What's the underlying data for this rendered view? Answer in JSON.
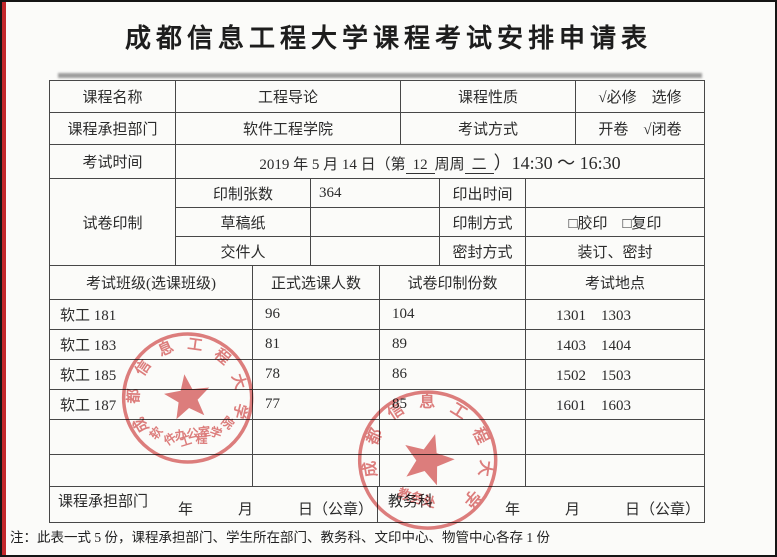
{
  "page": {
    "title": "成都信息工程大学课程考试安排申请表",
    "note": "注：此表一式 5 份，课程承担部门、学生所在部门、教务科、文印中心、物管中心各存 1 份"
  },
  "colors": {
    "stamp": "#d95f5f",
    "edge_red": "#c3282c"
  },
  "info": {
    "course_name_label": "课程名称",
    "course_name": "工程导论",
    "course_type_label": "课程性质",
    "course_type": "√必修　选修",
    "dept_label": "课程承担部门",
    "dept": "软件工程学院",
    "exam_mode_label": "考试方式",
    "exam_mode": "开卷　√闭卷",
    "exam_time_label": "考试时间",
    "exam_time": {
      "prefix": "2019 年 5 月 14 日（第",
      "week": "12",
      "mid": "周周",
      "day": "二",
      "suffix": "）14:30 ～ 16:30"
    }
  },
  "printing": {
    "label": "试卷印制",
    "rows": [
      {
        "k1": "印制张数",
        "v1": "364",
        "k2": "印出时间",
        "v2": ""
      },
      {
        "k1": "草稿纸",
        "v1": "",
        "k2": "印制方式",
        "v2": "□胶印　□复印"
      },
      {
        "k1": "交件人",
        "v1": "",
        "k2": "密封方式",
        "v2": "装订、密封"
      }
    ]
  },
  "classes": {
    "headers": [
      "考试班级(选课班级)",
      "正式选课人数",
      "试卷印制份数",
      "考试地点"
    ],
    "rows": [
      [
        "软工 181",
        "96",
        "104",
        "1301　1303"
      ],
      [
        "软工 183",
        "81",
        "89",
        "1403　1404"
      ],
      [
        "软工 185",
        "78",
        "86",
        "1502　1503"
      ],
      [
        "软工 187",
        "77",
        "85",
        "1601　1603"
      ],
      [
        "",
        "",
        "",
        ""
      ],
      [
        "",
        "",
        "",
        ""
      ]
    ]
  },
  "signoff": {
    "left_label": "课程承担部门",
    "left_date": "年　　　月　　　日（公章）",
    "right_label": "教务科",
    "right_date": "年　　　月　　　日（公章）"
  },
  "stamps": {
    "left": {
      "ring": "成都信息工程大学",
      "bottom_arc": "软件工程学院",
      "center_bottom": "办公室"
    },
    "right": {
      "ring": "成都信息工程大学",
      "center_bottom": "教务处"
    }
  }
}
